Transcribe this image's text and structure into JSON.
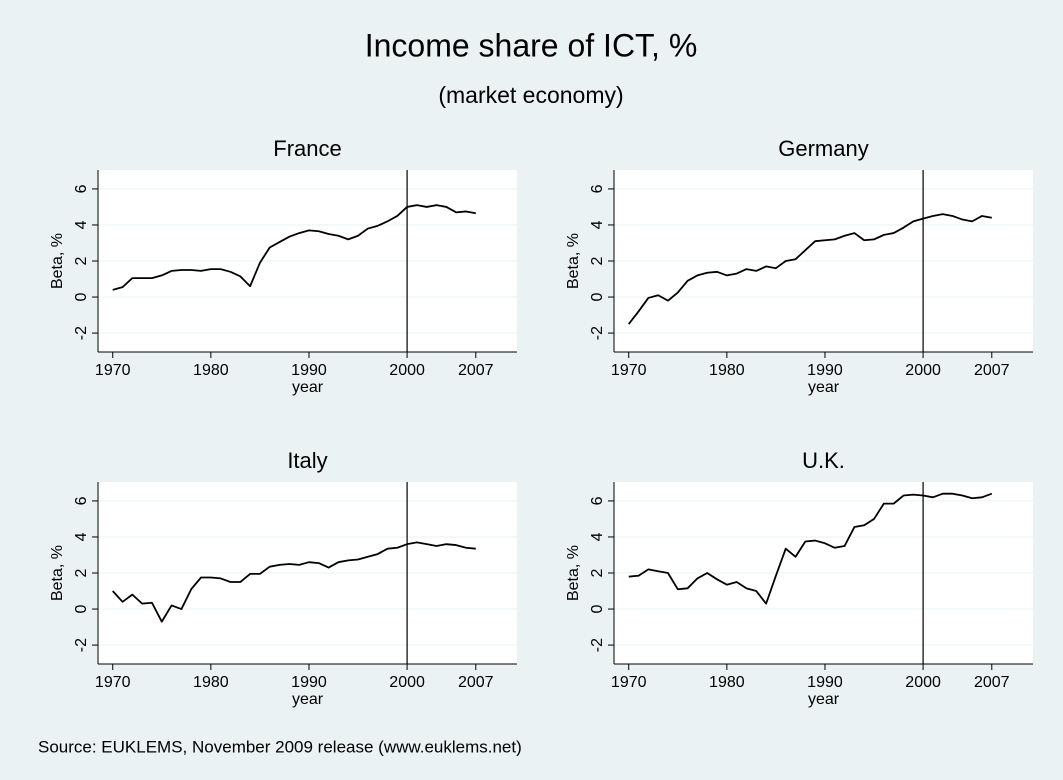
{
  "title": "Income share of ICT, %",
  "subtitle": "(market economy)",
  "note": "Source: EUKLEMS, November 2009 release (www.euklems.net)",
  "chart_data": [
    {
      "type": "line",
      "title": "France",
      "xlabel": "year",
      "ylabel": "Beta, %",
      "color": "#000000",
      "grid": true,
      "xline": 2000,
      "x": [
        1970,
        1971,
        1972,
        1973,
        1974,
        1975,
        1976,
        1977,
        1978,
        1979,
        1980,
        1981,
        1982,
        1983,
        1984,
        1985,
        1986,
        1987,
        1988,
        1989,
        1990,
        1991,
        1992,
        1993,
        1994,
        1995,
        1996,
        1997,
        1998,
        1999,
        2000,
        2001,
        2002,
        2003,
        2004,
        2005,
        2006,
        2007
      ],
      "values": [
        0.4,
        0.55,
        1.05,
        1.05,
        1.05,
        1.2,
        1.45,
        1.5,
        1.5,
        1.45,
        1.55,
        1.55,
        1.4,
        1.15,
        0.6,
        1.9,
        2.75,
        3.05,
        3.35,
        3.55,
        3.7,
        3.65,
        3.5,
        3.4,
        3.2,
        3.4,
        3.8,
        3.95,
        4.2,
        4.5,
        5.0,
        5.1,
        5.0,
        5.1,
        5.0,
        4.7,
        4.75,
        4.65
      ],
      "xlim": [
        1968.5,
        2011.2
      ],
      "ylim": [
        -3.05,
        7.05
      ],
      "xticks": [
        1970,
        1980,
        1990,
        2000,
        2007
      ],
      "yticks": [
        -2,
        0,
        2,
        4,
        6
      ]
    },
    {
      "type": "line",
      "title": "Germany",
      "xlabel": "year",
      "ylabel": "Beta, %",
      "color": "#000000",
      "grid": true,
      "xline": 2000,
      "x": [
        1970,
        1971,
        1972,
        1973,
        1974,
        1975,
        1976,
        1977,
        1978,
        1979,
        1980,
        1981,
        1982,
        1983,
        1984,
        1985,
        1986,
        1987,
        1988,
        1989,
        1990,
        1991,
        1992,
        1993,
        1994,
        1995,
        1996,
        1997,
        1998,
        1999,
        2000,
        2001,
        2002,
        2003,
        2004,
        2005,
        2006,
        2007
      ],
      "values": [
        -1.5,
        -0.8,
        -0.05,
        0.1,
        -0.2,
        0.25,
        0.9,
        1.2,
        1.35,
        1.4,
        1.2,
        1.3,
        1.55,
        1.45,
        1.7,
        1.6,
        2.0,
        2.1,
        2.6,
        3.1,
        3.15,
        3.2,
        3.4,
        3.55,
        3.15,
        3.2,
        3.45,
        3.55,
        3.85,
        4.2,
        4.35,
        4.5,
        4.6,
        4.5,
        4.3,
        4.2,
        4.5,
        4.4
      ],
      "xlim": [
        1968.5,
        2011.2
      ],
      "ylim": [
        -3.05,
        7.05
      ],
      "xticks": [
        1970,
        1980,
        1990,
        2000,
        2007
      ],
      "yticks": [
        -2,
        0,
        2,
        4,
        6
      ]
    },
    {
      "type": "line",
      "title": "Italy",
      "xlabel": "year",
      "ylabel": "Beta, %",
      "color": "#000000",
      "grid": true,
      "xline": 2000,
      "x": [
        1970,
        1971,
        1972,
        1973,
        1974,
        1975,
        1976,
        1977,
        1978,
        1979,
        1980,
        1981,
        1982,
        1983,
        1984,
        1985,
        1986,
        1987,
        1988,
        1989,
        1990,
        1991,
        1992,
        1993,
        1994,
        1995,
        1996,
        1997,
        1998,
        1999,
        2000,
        2001,
        2002,
        2003,
        2004,
        2005,
        2006,
        2007
      ],
      "values": [
        1.0,
        0.4,
        0.8,
        0.3,
        0.35,
        -0.7,
        0.2,
        0.0,
        1.1,
        1.75,
        1.75,
        1.7,
        1.5,
        1.5,
        1.95,
        1.95,
        2.35,
        2.45,
        2.5,
        2.45,
        2.6,
        2.55,
        2.3,
        2.6,
        2.7,
        2.75,
        2.9,
        3.05,
        3.35,
        3.4,
        3.6,
        3.7,
        3.6,
        3.5,
        3.6,
        3.55,
        3.4,
        3.35
      ],
      "xlim": [
        1968.5,
        2011.2
      ],
      "ylim": [
        -3.05,
        7.05
      ],
      "xticks": [
        1970,
        1980,
        1990,
        2000,
        2007
      ],
      "yticks": [
        -2,
        0,
        2,
        4,
        6
      ]
    },
    {
      "type": "line",
      "title": "U.K.",
      "xlabel": "year",
      "ylabel": "Beta, %",
      "color": "#000000",
      "grid": true,
      "xline": 2000,
      "x": [
        1970,
        1971,
        1972,
        1973,
        1974,
        1975,
        1976,
        1977,
        1978,
        1979,
        1980,
        1981,
        1982,
        1983,
        1984,
        1985,
        1986,
        1987,
        1988,
        1989,
        1990,
        1991,
        1992,
        1993,
        1994,
        1995,
        1996,
        1997,
        1998,
        1999,
        2000,
        2001,
        2002,
        2003,
        2004,
        2005,
        2006,
        2007
      ],
      "values": [
        1.8,
        1.85,
        2.2,
        2.1,
        2.0,
        1.1,
        1.15,
        1.7,
        2.0,
        1.65,
        1.35,
        1.5,
        1.15,
        1.0,
        0.3,
        1.85,
        3.35,
        2.9,
        3.75,
        3.8,
        3.65,
        3.4,
        3.5,
        4.55,
        4.65,
        5.0,
        5.85,
        5.85,
        6.3,
        6.35,
        6.3,
        6.2,
        6.4,
        6.4,
        6.3,
        6.15,
        6.2,
        6.4
      ],
      "xlim": [
        1968.5,
        2011.2
      ],
      "ylim": [
        -3.05,
        7.05
      ],
      "xticks": [
        1970,
        1980,
        1990,
        2000,
        2007
      ],
      "yticks": [
        -2,
        0,
        2,
        4,
        6
      ]
    }
  ]
}
